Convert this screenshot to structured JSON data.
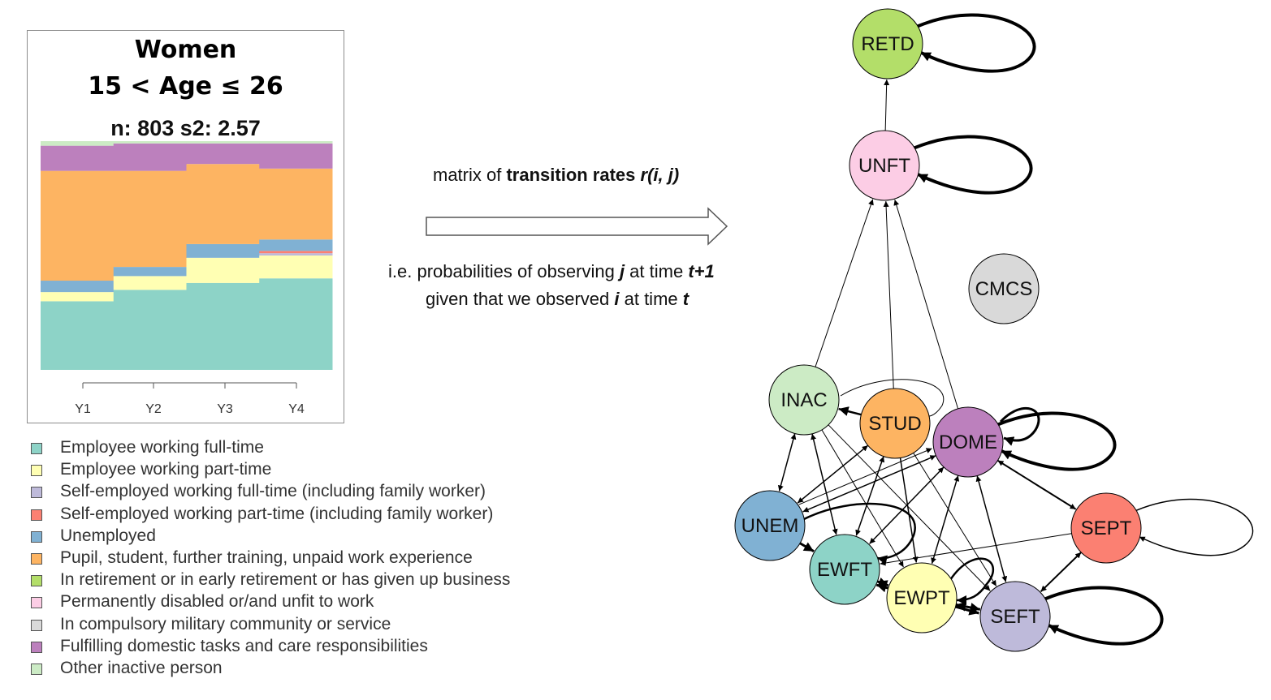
{
  "panel": {
    "title": "Women",
    "subtitle": "15 < Age ≤ 26",
    "stats": "n: 803 s2: 2.57"
  },
  "chart_data": {
    "type": "area",
    "categories": [
      "Y1",
      "Y2",
      "Y3",
      "Y4"
    ],
    "ylim": [
      0,
      1
    ],
    "series": [
      {
        "name": "Employee working full-time",
        "color": "#8dd3c7",
        "values": [
          0.3,
          0.35,
          0.38,
          0.4
        ]
      },
      {
        "name": "Employee working part-time",
        "color": "#ffffb3",
        "values": [
          0.04,
          0.06,
          0.11,
          0.1
        ]
      },
      {
        "name": "Self-employed working full-time (including family worker)",
        "color": "#bebada",
        "values": [
          0.0,
          0.0,
          0.0,
          0.01
        ]
      },
      {
        "name": "Self-employed working part-time (including family worker)",
        "color": "#fb8072",
        "values": [
          0.0,
          0.0,
          0.0,
          0.01
        ]
      },
      {
        "name": "Unemployed",
        "color": "#80b1d3",
        "values": [
          0.05,
          0.04,
          0.06,
          0.05
        ]
      },
      {
        "name": "Pupil, student, further training, unpaid work experience",
        "color": "#fdb462",
        "values": [
          0.48,
          0.42,
          0.35,
          0.31
        ]
      },
      {
        "name": "In retirement or in early retirement or has given up business",
        "color": "#b3de69",
        "values": [
          0.0,
          0.0,
          0.0,
          0.0
        ]
      },
      {
        "name": "Permanently disabled or/and unfit to work",
        "color": "#fccde5",
        "values": [
          0.0,
          0.0,
          0.0,
          0.0
        ]
      },
      {
        "name": "In compulsory military community or service",
        "color": "#d9d9d9",
        "values": [
          0.0,
          0.0,
          0.0,
          0.0
        ]
      },
      {
        "name": "Fulfilling domestic tasks and care responsibilities",
        "color": "#bc80bd",
        "values": [
          0.11,
          0.12,
          0.09,
          0.11
        ]
      },
      {
        "name": "Other inactive person",
        "color": "#ccebc5",
        "values": [
          0.02,
          0.01,
          0.01,
          0.01
        ]
      }
    ]
  },
  "caption": {
    "line1_a": "matrix of ",
    "line1_b": "transition rates ",
    "line1_c": "r(i, j)",
    "line2_a": "i.e. probabilities of observing ",
    "line2_b": "j",
    "line2_c": " at time ",
    "line2_d": "t+1",
    "line3_a": "given that we observed ",
    "line3_b": "i",
    "line3_c": " at time ",
    "line3_d": "t"
  },
  "graph": {
    "nodes": [
      {
        "id": "RETD",
        "label": "RETD",
        "color": "#b3de69"
      },
      {
        "id": "UNFT",
        "label": "UNFT",
        "color": "#fccde5"
      },
      {
        "id": "CMCS",
        "label": "CMCS",
        "color": "#d9d9d9"
      },
      {
        "id": "INAC",
        "label": "INAC",
        "color": "#ccebc5"
      },
      {
        "id": "STUD",
        "label": "STUD",
        "color": "#fdb462"
      },
      {
        "id": "DOME",
        "label": "DOME",
        "color": "#bc80bd"
      },
      {
        "id": "UNEM",
        "label": "UNEM",
        "color": "#80b1d3"
      },
      {
        "id": "SEPT",
        "label": "SEPT",
        "color": "#fb8072"
      },
      {
        "id": "EWFT",
        "label": "EWFT",
        "color": "#8dd3c7"
      },
      {
        "id": "EWPT",
        "label": "EWPT",
        "color": "#ffffb3"
      },
      {
        "id": "SEFT",
        "label": "SEFT",
        "color": "#bebada"
      }
    ]
  }
}
